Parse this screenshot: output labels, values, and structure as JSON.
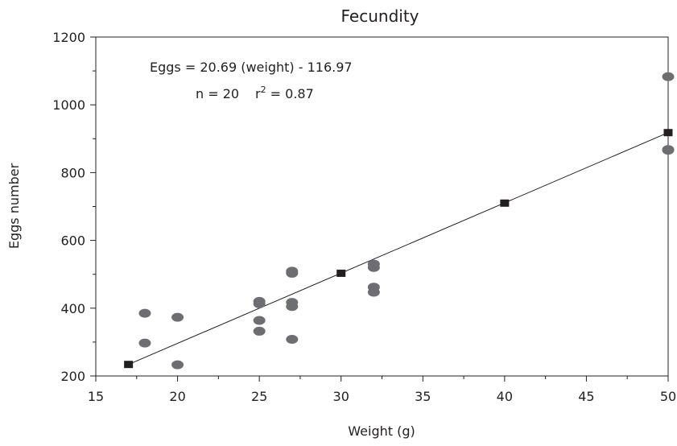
{
  "chart_data": {
    "type": "scatter",
    "title": "Fecundity",
    "xlabel": "Weight (g)",
    "ylabel": "Eggs number",
    "xlim": [
      15,
      50
    ],
    "ylim": [
      200,
      1200
    ],
    "xticks": [
      15,
      20,
      25,
      30,
      35,
      40,
      45,
      50
    ],
    "yticks": [
      200,
      400,
      600,
      800,
      1000,
      1200
    ],
    "xtick_labels": [
      "15",
      "20",
      "25",
      "30",
      "35",
      "40",
      "45",
      "50"
    ],
    "ytick_labels": [
      "200",
      "400",
      "600",
      "800",
      "1000",
      "1200"
    ],
    "grid": false,
    "annotations": {
      "equation": "Eggs = 20.69 (weight) - 116.97",
      "n_text": "n = 20",
      "r2_prefix": "r",
      "r2_sup": "2",
      "r2_value": " = 0.87"
    },
    "series": [
      {
        "kind": "observed",
        "marker": "ellipse",
        "color": "#6d6e71",
        "points": [
          [
            18,
            385
          ],
          [
            18,
            297
          ],
          [
            20,
            373
          ],
          [
            20,
            233
          ],
          [
            25,
            420
          ],
          [
            25,
            413
          ],
          [
            25,
            364
          ],
          [
            25,
            332
          ],
          [
            27,
            509
          ],
          [
            27,
            503
          ],
          [
            27,
            417
          ],
          [
            27,
            405
          ],
          [
            27,
            308
          ],
          [
            32,
            530
          ],
          [
            32,
            520
          ],
          [
            32,
            462
          ],
          [
            32,
            447
          ],
          [
            50,
            1083
          ],
          [
            50,
            868
          ],
          [
            50,
            866
          ]
        ]
      },
      {
        "kind": "fitted",
        "marker": "square",
        "color": "#231f20",
        "points": [
          [
            17,
            234
          ],
          [
            30,
            503
          ],
          [
            40,
            710
          ],
          [
            50,
            918
          ]
        ]
      }
    ]
  }
}
